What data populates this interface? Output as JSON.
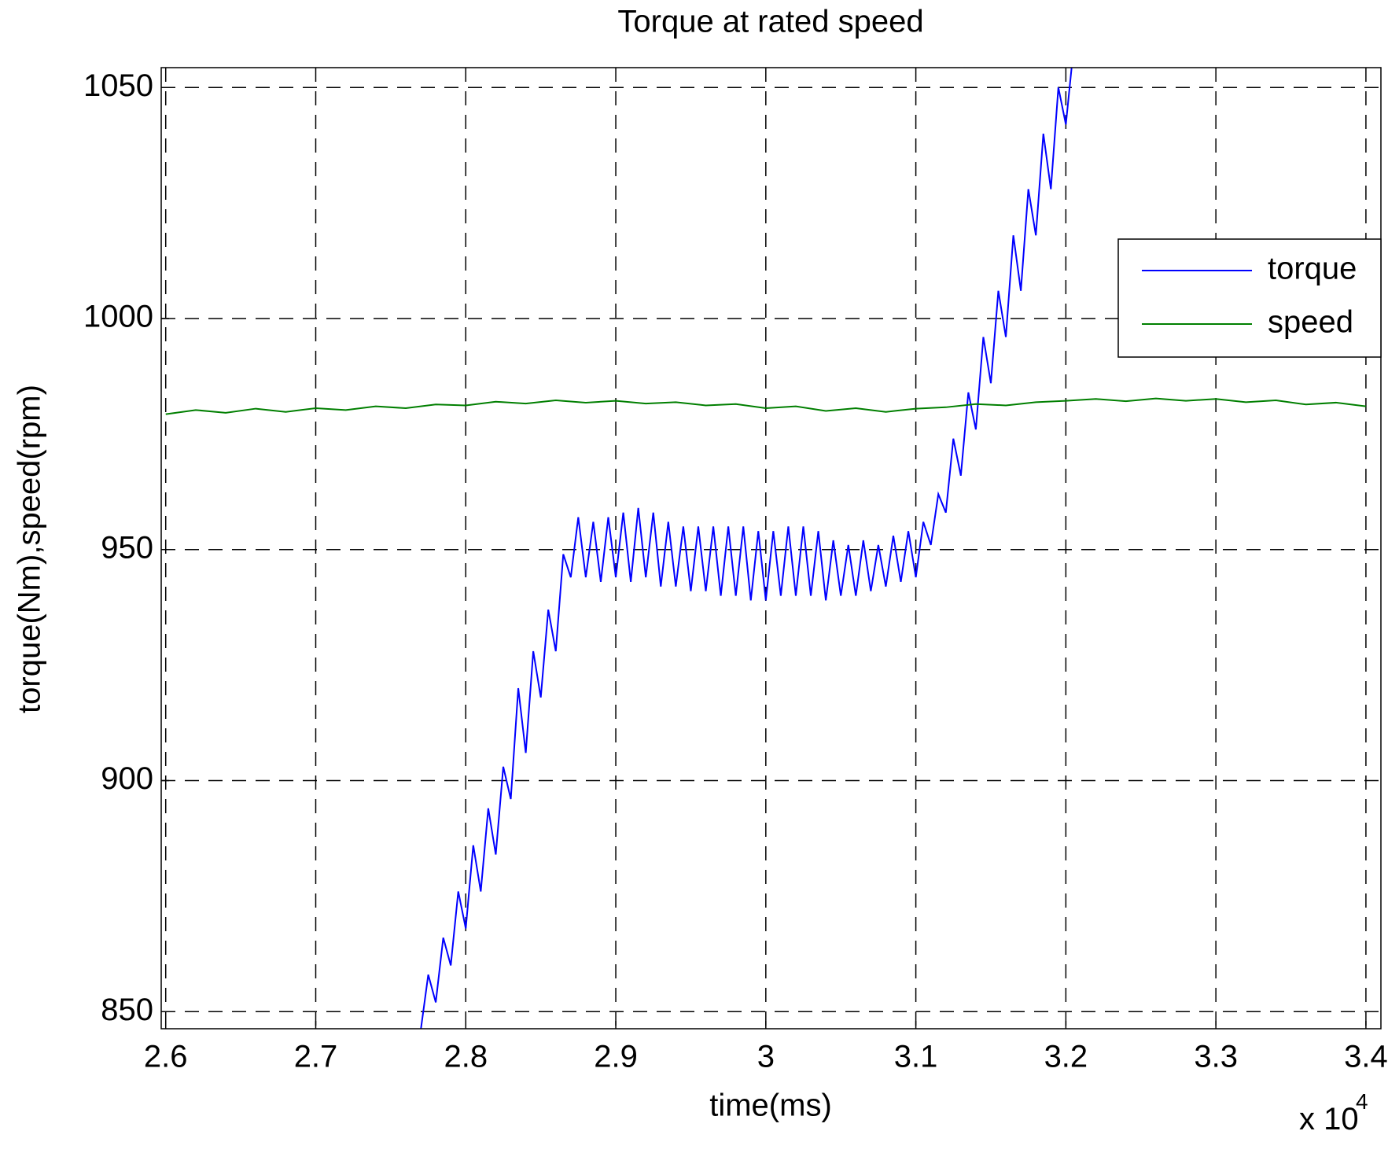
{
  "chart_data": {
    "type": "line",
    "title": "Torque at rated speed",
    "x_label": "time(ms)",
    "y_label": "torque(Nm),speed(rpm)",
    "x_multiplier": {
      "base": "x 10",
      "exponent": "4"
    },
    "xlim": [
      2.597,
      3.41
    ],
    "ylim": [
      846.3,
      1054.3
    ],
    "xticks": [
      2.6,
      2.7,
      2.8,
      2.9,
      3,
      3.1,
      3.2,
      3.3,
      3.4
    ],
    "yticks": [
      850,
      900,
      950,
      1000,
      1050
    ],
    "grid": true,
    "legend": "northeast",
    "series": [
      {
        "name": "torque",
        "color": "#0000ff",
        "x": [
          2.77,
          2.775,
          2.78,
          2.785,
          2.79,
          2.795,
          2.8,
          2.805,
          2.81,
          2.815,
          2.82,
          2.825,
          2.83,
          2.835,
          2.84,
          2.845,
          2.85,
          2.855,
          2.86,
          2.865,
          2.87,
          2.875,
          2.88,
          2.885,
          2.89,
          2.895,
          2.9,
          2.905,
          2.91,
          2.915,
          2.92,
          2.925,
          2.93,
          2.935,
          2.94,
          2.945,
          2.95,
          2.955,
          2.96,
          2.965,
          2.97,
          2.975,
          2.98,
          2.985,
          2.99,
          2.995,
          3.0,
          3.005,
          3.01,
          3.015,
          3.02,
          3.025,
          3.03,
          3.035,
          3.04,
          3.045,
          3.05,
          3.055,
          3.06,
          3.065,
          3.07,
          3.075,
          3.08,
          3.085,
          3.09,
          3.095,
          3.1,
          3.105,
          3.11,
          3.115,
          3.12,
          3.125,
          3.13,
          3.135,
          3.14,
          3.145,
          3.15,
          3.155,
          3.16,
          3.165,
          3.17,
          3.175,
          3.18,
          3.185,
          3.19,
          3.195,
          3.2,
          3.205
        ],
        "values": [
          846,
          858,
          852,
          866,
          860,
          876,
          868,
          886,
          876,
          894,
          884,
          903,
          896,
          920,
          906,
          928,
          918,
          937,
          928,
          949,
          944,
          957,
          944,
          956,
          943,
          957,
          944,
          958,
          943,
          959,
          944,
          958,
          942,
          956,
          942,
          955,
          941,
          955,
          941,
          955,
          940,
          955,
          940,
          955,
          939,
          954,
          939,
          954,
          940,
          955,
          940,
          955,
          940,
          954,
          939,
          952,
          940,
          951,
          940,
          952,
          941,
          951,
          942,
          953,
          943,
          954,
          944,
          956,
          951,
          962,
          958,
          974,
          966,
          984,
          976,
          996,
          986,
          1006,
          996,
          1018,
          1006,
          1028,
          1018,
          1040,
          1028,
          1050,
          1042,
          1058
        ]
      },
      {
        "name": "speed",
        "color": "#007f00",
        "x": [
          2.6,
          2.62,
          2.64,
          2.66,
          2.68,
          2.7,
          2.72,
          2.74,
          2.76,
          2.78,
          2.8,
          2.82,
          2.84,
          2.86,
          2.88,
          2.9,
          2.92,
          2.94,
          2.96,
          2.98,
          3.0,
          3.02,
          3.04,
          3.06,
          3.08,
          3.1,
          3.12,
          3.14,
          3.16,
          3.18,
          3.2,
          3.22,
          3.24,
          3.26,
          3.28,
          3.3,
          3.32,
          3.34,
          3.36,
          3.38,
          3.4
        ],
        "values": [
          979.3,
          980.2,
          979.6,
          980.5,
          979.8,
          980.6,
          980.2,
          981.0,
          980.6,
          981.4,
          981.2,
          982.0,
          981.6,
          982.3,
          981.8,
          982.2,
          981.6,
          981.9,
          981.2,
          981.5,
          980.6,
          981.0,
          980.0,
          980.6,
          979.8,
          980.5,
          980.8,
          981.5,
          981.2,
          981.9,
          982.2,
          982.6,
          982.1,
          982.7,
          982.2,
          982.6,
          981.9,
          982.3,
          981.4,
          981.8,
          981.0
        ]
      }
    ]
  }
}
